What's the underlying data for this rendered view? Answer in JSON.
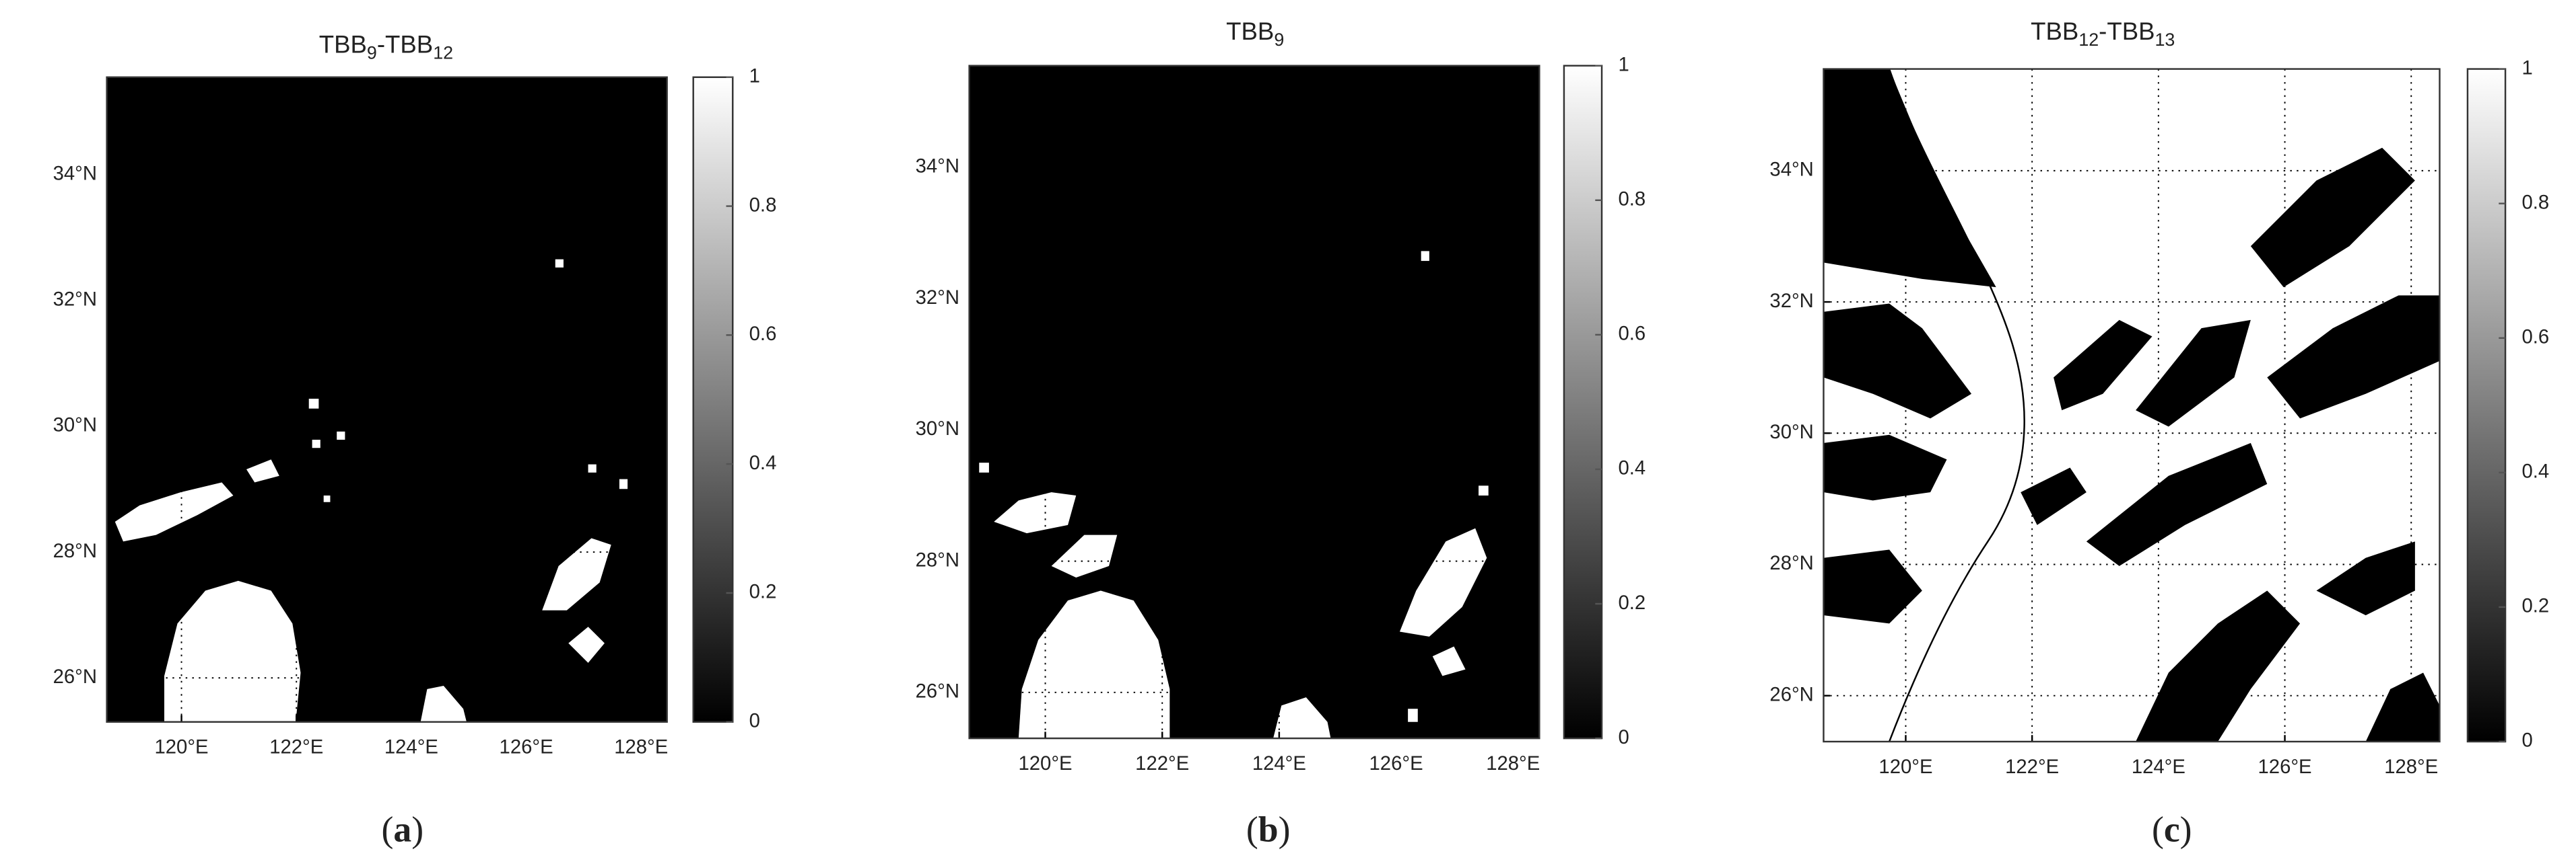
{
  "chart_data": [
    {
      "type": "map",
      "title": [
        "TBB",
        "9",
        "-TBB",
        "12"
      ],
      "panel_label": [
        "(",
        "a",
        ")"
      ],
      "xlim": [
        118.7,
        128.45
      ],
      "ylim": [
        25.3,
        35.55
      ],
      "xticks": [
        {
          "value": 120,
          "label": "120°E"
        },
        {
          "value": 122,
          "label": "122°E"
        },
        {
          "value": 124,
          "label": "124°E"
        },
        {
          "value": 126,
          "label": "126°E"
        },
        {
          "value": 128,
          "label": "128°E"
        }
      ],
      "yticks": [
        {
          "value": 26,
          "label": "26°N"
        },
        {
          "value": 28,
          "label": "28°N"
        },
        {
          "value": 30,
          "label": "30°N"
        },
        {
          "value": 32,
          "label": "32°N"
        },
        {
          "value": 34,
          "label": "34°N"
        }
      ],
      "clim": [
        0,
        1
      ],
      "cticks": [
        0,
        0.2,
        0.4,
        0.6,
        0.8,
        1
      ],
      "grid": true
    },
    {
      "type": "map",
      "title": [
        "TBB",
        "9"
      ],
      "panel_label": [
        "(",
        "b",
        ")"
      ],
      "xlim": [
        118.7,
        128.45
      ],
      "ylim": [
        25.3,
        35.55
      ],
      "xticks": [
        {
          "value": 120,
          "label": "120°E"
        },
        {
          "value": 122,
          "label": "122°E"
        },
        {
          "value": 124,
          "label": "124°E"
        },
        {
          "value": 126,
          "label": "126°E"
        },
        {
          "value": 128,
          "label": "128°E"
        }
      ],
      "yticks": [
        {
          "value": 26,
          "label": "26°N"
        },
        {
          "value": 28,
          "label": "28°N"
        },
        {
          "value": 30,
          "label": "30°N"
        },
        {
          "value": 32,
          "label": "32°N"
        },
        {
          "value": 34,
          "label": "34°N"
        }
      ],
      "clim": [
        0,
        1
      ],
      "cticks": [
        0,
        0.2,
        0.4,
        0.6,
        0.8,
        1
      ],
      "grid": true
    },
    {
      "type": "map",
      "title": [
        "TBB",
        "12",
        "-TBB",
        "13"
      ],
      "panel_label": [
        "(",
        "c",
        ")"
      ],
      "xlim": [
        118.7,
        128.45
      ],
      "ylim": [
        25.3,
        35.55
      ],
      "xticks": [
        {
          "value": 120,
          "label": "120°E"
        },
        {
          "value": 122,
          "label": "122°E"
        },
        {
          "value": 124,
          "label": "124°E"
        },
        {
          "value": 126,
          "label": "126°E"
        },
        {
          "value": 128,
          "label": "128°E"
        }
      ],
      "yticks": [
        {
          "value": 26,
          "label": "26°N"
        },
        {
          "value": 28,
          "label": "28°N"
        },
        {
          "value": 30,
          "label": "30°N"
        },
        {
          "value": 32,
          "label": "32°N"
        },
        {
          "value": 34,
          "label": "34°N"
        }
      ],
      "clim": [
        0,
        1
      ],
      "cticks": [
        0,
        0.2,
        0.4,
        0.6,
        0.8,
        1
      ],
      "grid": true
    }
  ]
}
